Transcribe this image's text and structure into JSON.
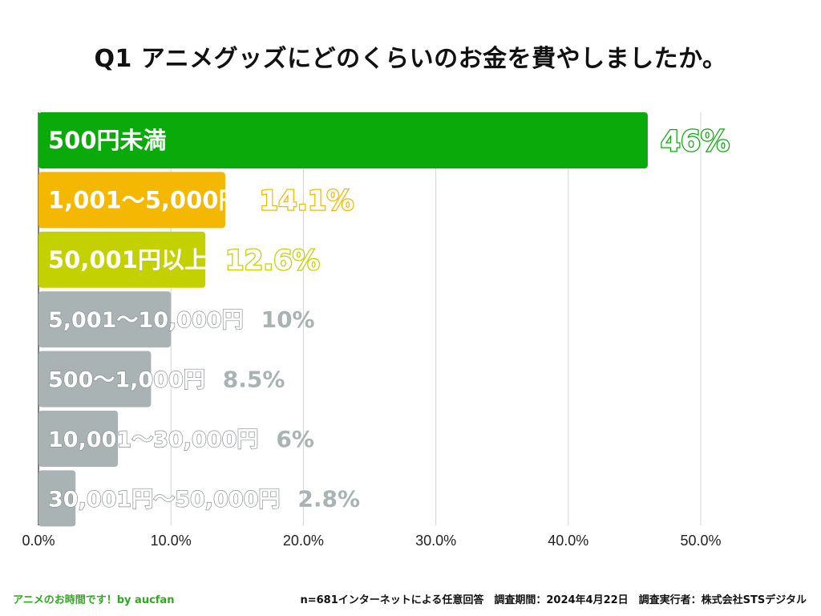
{
  "chart_data": {
    "type": "bar",
    "orientation": "horizontal",
    "title": "Q1 アニメグッズにどのくらいのお金を費やしましたか。",
    "categories": [
      "500円未満",
      "1,001〜5,000円",
      "50,001円以上",
      "5,001〜10,000円",
      "500〜1,000円",
      "10,001〜30,000円",
      "30,001円〜50,000円"
    ],
    "values": [
      46,
      14.1,
      12.6,
      10,
      8.5,
      6,
      2.8
    ],
    "value_labels": [
      "46%",
      "14.1%",
      "12.6%",
      "10%",
      "8.5%",
      "6%",
      "2.8%"
    ],
    "colors": [
      "#0aaa0a",
      "#f5b800",
      "#c3d100",
      "#aab3b3",
      "#aab3b3",
      "#aab3b3",
      "#aab3b3"
    ],
    "xlim": [
      0,
      50
    ],
    "xticks": [
      0,
      10,
      20,
      30,
      40,
      50
    ],
    "xtick_labels": [
      "0.0%",
      "10.0%",
      "20.0%",
      "30.0%",
      "40.0%",
      "50.0%"
    ],
    "grid": true
  },
  "footer": {
    "left": "アニメのお時間です！by aucfan",
    "right": "n=681インターネットによる任意回答　調査期間：2024年4月22日　調査実行者：株式会社STSデジタル"
  }
}
